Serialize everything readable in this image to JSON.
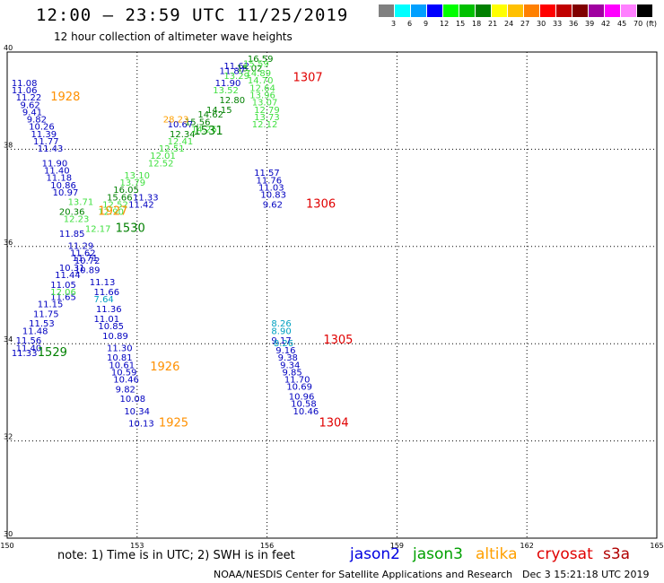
{
  "header": {
    "title": "12:00 – 23:59 UTC 11/25/2019",
    "subtitle": "12 hour collection of altimeter wave heights"
  },
  "colorbar": {
    "ticks": [
      "3",
      "6",
      "9",
      "12",
      "15",
      "18",
      "21",
      "24",
      "27",
      "30",
      "33",
      "36",
      "39",
      "42",
      "45",
      "70"
    ],
    "unit": "(ft)",
    "colors": [
      "#808080",
      "#00ffff",
      "#00a0ff",
      "#0000ff",
      "#00ff00",
      "#00c000",
      "#008000",
      "#ffff00",
      "#ffc000",
      "#ff8000",
      "#ff0000",
      "#c00000",
      "#800000",
      "#a000a0",
      "#ff00ff",
      "#ff80ff",
      "#000000"
    ]
  },
  "chart_data": {
    "type": "scatter",
    "xlim": [
      150,
      165
    ],
    "ylim": [
      30,
      40
    ],
    "x_ticks": [
      "150",
      "153",
      "156",
      "159",
      "162",
      "165"
    ],
    "y_ticks": [
      "30",
      "32",
      "34",
      "36",
      "38",
      "40"
    ],
    "grid": true,
    "series": [
      {
        "name": "jason2",
        "color": "#0000c0",
        "points": [
          [
            150.1,
            39.3,
            "11.08"
          ],
          [
            150.1,
            39.15,
            "11.06"
          ],
          [
            150.2,
            39.0,
            "11.22"
          ],
          [
            150.3,
            38.85,
            "9.62"
          ],
          [
            150.35,
            38.7,
            "9.41"
          ],
          [
            150.45,
            38.55,
            "9.82"
          ],
          [
            150.5,
            38.4,
            "10.26"
          ],
          [
            150.55,
            38.25,
            "11.39"
          ],
          [
            150.6,
            38.1,
            "11.77"
          ],
          [
            150.7,
            37.95,
            "11.43"
          ],
          [
            150.8,
            37.65,
            "11.90"
          ],
          [
            150.85,
            37.5,
            "11.40"
          ],
          [
            150.9,
            37.35,
            "11.18"
          ],
          [
            151.0,
            37.2,
            "10.86"
          ],
          [
            151.05,
            37.05,
            "10.97"
          ],
          [
            151.2,
            36.2,
            "11.85"
          ],
          [
            151.4,
            35.95,
            "11.29"
          ],
          [
            151.45,
            35.8,
            "11.62"
          ],
          [
            151.5,
            35.7,
            "11.71"
          ],
          [
            151.55,
            35.65,
            "10.72"
          ],
          [
            151.2,
            35.5,
            "10.31"
          ],
          [
            151.55,
            35.45,
            "10.89"
          ],
          [
            151.1,
            35.35,
            "11.44"
          ],
          [
            151.9,
            35.2,
            "11.13"
          ],
          [
            151.0,
            35.15,
            "11.05"
          ],
          [
            152.0,
            35.0,
            "11.66"
          ],
          [
            151.0,
            34.9,
            "11.65"
          ],
          [
            150.7,
            34.75,
            "11.15"
          ],
          [
            152.05,
            34.65,
            "11.36"
          ],
          [
            150.6,
            34.55,
            "11.75"
          ],
          [
            152.0,
            34.45,
            "11.01"
          ],
          [
            150.5,
            34.35,
            "11.53"
          ],
          [
            152.1,
            34.3,
            "10.85"
          ],
          [
            150.35,
            34.2,
            "11.48"
          ],
          [
            152.2,
            34.1,
            "10.89"
          ],
          [
            150.2,
            34.0,
            "11.56"
          ],
          [
            150.2,
            33.85,
            "11.40"
          ],
          [
            152.3,
            33.85,
            "11.30"
          ],
          [
            150.1,
            33.75,
            "11.33"
          ],
          [
            152.3,
            33.65,
            "10.81"
          ],
          [
            152.35,
            33.5,
            "10.61"
          ],
          [
            152.4,
            33.35,
            "10.59"
          ],
          [
            152.45,
            33.2,
            "10.46"
          ],
          [
            152.5,
            33.0,
            "9.82"
          ],
          [
            152.6,
            32.8,
            "10.08"
          ],
          [
            152.7,
            32.55,
            "10.34"
          ],
          [
            152.8,
            32.3,
            "10.13"
          ],
          [
            155.0,
            39.65,
            "11.62"
          ],
          [
            154.9,
            39.55,
            "11.87"
          ],
          [
            154.8,
            39.3,
            "11.90"
          ],
          [
            153.7,
            38.45,
            "10.67"
          ],
          [
            155.7,
            37.45,
            "11.57"
          ],
          [
            155.75,
            37.3,
            "11.76"
          ],
          [
            155.8,
            37.15,
            "11.03"
          ],
          [
            155.85,
            37.0,
            "10.83"
          ],
          [
            155.9,
            36.8,
            "9.62"
          ],
          [
            156.2,
            33.8,
            "9.16"
          ],
          [
            156.25,
            33.65,
            "9.38"
          ],
          [
            156.3,
            33.5,
            "9.34"
          ],
          [
            156.35,
            33.35,
            "9.85"
          ],
          [
            156.4,
            33.2,
            "11.70"
          ],
          [
            156.45,
            33.05,
            "10.69"
          ],
          [
            156.5,
            32.85,
            "10.96"
          ],
          [
            156.55,
            32.7,
            "10.58"
          ],
          [
            156.6,
            32.55,
            "10.46"
          ],
          [
            152.9,
            36.95,
            "11.33"
          ],
          [
            152.8,
            36.8,
            "11.42"
          ],
          [
            156.1,
            34.0,
            "9.17"
          ]
        ]
      },
      {
        "name": "jason3",
        "color": "#008000",
        "points": [
          [
            155.55,
            39.8,
            "16.59"
          ],
          [
            155.3,
            39.6,
            "15.02"
          ],
          [
            154.9,
            38.95,
            "12.80"
          ],
          [
            154.6,
            38.75,
            "14.15"
          ],
          [
            154.4,
            38.65,
            "14.62"
          ],
          [
            154.1,
            38.5,
            "15.56"
          ],
          [
            153.75,
            38.25,
            "12.34"
          ],
          [
            151.2,
            36.65,
            "20.36"
          ],
          [
            152.45,
            37.1,
            "16.05"
          ],
          [
            152.3,
            36.95,
            "15.66"
          ]
        ]
      },
      {
        "name": "jason3-light",
        "color": "#40e040",
        "points": [
          [
            155.45,
            39.7,
            "15.59"
          ],
          [
            155.0,
            39.45,
            "13.29"
          ],
          [
            155.5,
            39.5,
            "14.89"
          ],
          [
            155.55,
            39.35,
            "14.70"
          ],
          [
            154.75,
            39.15,
            "13.52"
          ],
          [
            155.6,
            39.2,
            "12.64"
          ],
          [
            155.6,
            39.05,
            "13.96"
          ],
          [
            155.65,
            38.9,
            "13.07"
          ],
          [
            154.25,
            38.35,
            "14.26"
          ],
          [
            155.7,
            38.75,
            "12.79"
          ],
          [
            155.7,
            38.6,
            "13.73"
          ],
          [
            155.65,
            38.45,
            "12.12"
          ],
          [
            153.7,
            38.1,
            "12.41"
          ],
          [
            153.5,
            37.95,
            "12.51"
          ],
          [
            153.3,
            37.8,
            "12.01"
          ],
          [
            153.25,
            37.65,
            "12.52"
          ],
          [
            152.7,
            37.4,
            "13.10"
          ],
          [
            152.6,
            37.25,
            "13.79"
          ],
          [
            152.2,
            36.8,
            "12.52"
          ],
          [
            152.1,
            36.65,
            "12.90"
          ],
          [
            151.4,
            36.85,
            "13.71"
          ],
          [
            151.3,
            36.5,
            "12.23"
          ],
          [
            151.8,
            36.3,
            "12.17"
          ],
          [
            151.0,
            35.0,
            "12.06"
          ]
        ]
      },
      {
        "name": "altika",
        "color": "#ffa000",
        "points": [
          [
            153.6,
            38.55,
            "28.23"
          ]
        ]
      },
      {
        "name": "s3a-cyan",
        "color": "#00a0c0",
        "points": [
          [
            156.1,
            34.35,
            "8.26"
          ],
          [
            156.1,
            34.2,
            "8.90"
          ],
          [
            156.15,
            33.95,
            "8.26"
          ],
          [
            152.0,
            34.85,
            "7.64"
          ]
        ]
      }
    ],
    "labels": [
      {
        "text": "1307",
        "x": 156.6,
        "y": 39.4,
        "color": "#e00000"
      },
      {
        "text": "1928",
        "x": 151.0,
        "y": 39.0,
        "color": "#ff9000"
      },
      {
        "text": "1531",
        "x": 154.3,
        "y": 38.3,
        "color": "#008000"
      },
      {
        "text": "1306",
        "x": 156.9,
        "y": 36.8,
        "color": "#e00000"
      },
      {
        "text": "1927",
        "x": 152.1,
        "y": 36.65,
        "color": "#ff9000"
      },
      {
        "text": "1530",
        "x": 152.5,
        "y": 36.3,
        "color": "#008000"
      },
      {
        "text": "1305",
        "x": 157.3,
        "y": 34.0,
        "color": "#e00000"
      },
      {
        "text": "1529",
        "x": 150.7,
        "y": 33.75,
        "color": "#008000"
      },
      {
        "text": "1926",
        "x": 153.3,
        "y": 33.45,
        "color": "#ff9000"
      },
      {
        "text": "1304",
        "x": 157.2,
        "y": 32.3,
        "color": "#e00000"
      },
      {
        "text": "1925",
        "x": 153.5,
        "y": 32.3,
        "color": "#ff9000"
      }
    ]
  },
  "note": "note:  1) Time is in UTC;  2) SWH is in feet",
  "satellites": [
    {
      "name": "jason2",
      "color": "#0000e0"
    },
    {
      "name": "jason3",
      "color": "#00a000"
    },
    {
      "name": "altika",
      "color": "#ffa000"
    },
    {
      "name": "cryosat",
      "color": "#e00000"
    },
    {
      "name": "s3a",
      "color": "#b00000"
    }
  ],
  "footer": {
    "left": "NOAA/NESDIS Center for Satellite Applications and Research",
    "right": "Dec  3 15:21:18 UTC 2019"
  }
}
